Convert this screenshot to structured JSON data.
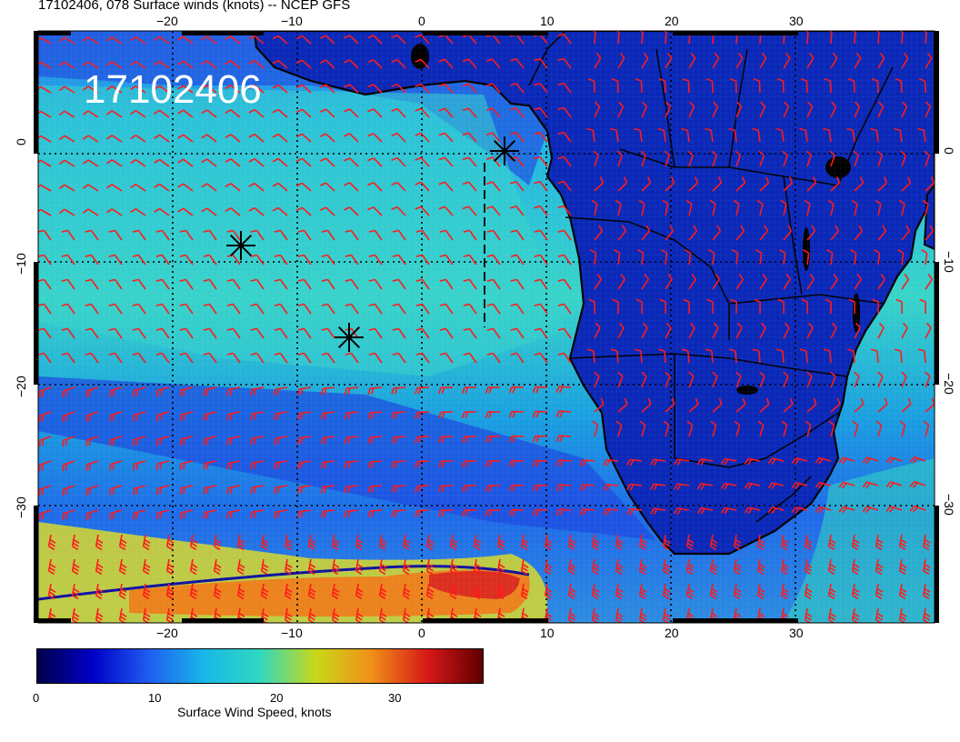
{
  "title": "17102406, 078 Surface winds (knots) -- NCEP GFS",
  "stamp": "17102406",
  "lon_ticks": [
    "−20",
    "−10",
    "0",
    "10",
    "20",
    "30"
  ],
  "lat_ticks": [
    "0",
    "−10",
    "−20",
    "−30"
  ],
  "colorbar": {
    "title": "Surface Wind Speed, knots",
    "ticks": [
      "0",
      "10",
      "20",
      "30"
    ],
    "colors": [
      "#00004a",
      "#0000c8",
      "#1f5cf0",
      "#18b8e8",
      "#30d8c0",
      "#c8d818",
      "#f09018",
      "#d81818",
      "#600000"
    ]
  },
  "markers": [
    {
      "name": "marker-equator-gabon",
      "symbol": "asterisk"
    },
    {
      "name": "marker-west-atlantic",
      "symbol": "asterisk"
    },
    {
      "name": "marker-south-atlantic",
      "symbol": "asterisk"
    }
  ],
  "colors": {
    "barbs": "#ff1a1a",
    "coast": "#000000",
    "ocean_base": "#22a8e0",
    "land_base": "#1030c8"
  }
}
